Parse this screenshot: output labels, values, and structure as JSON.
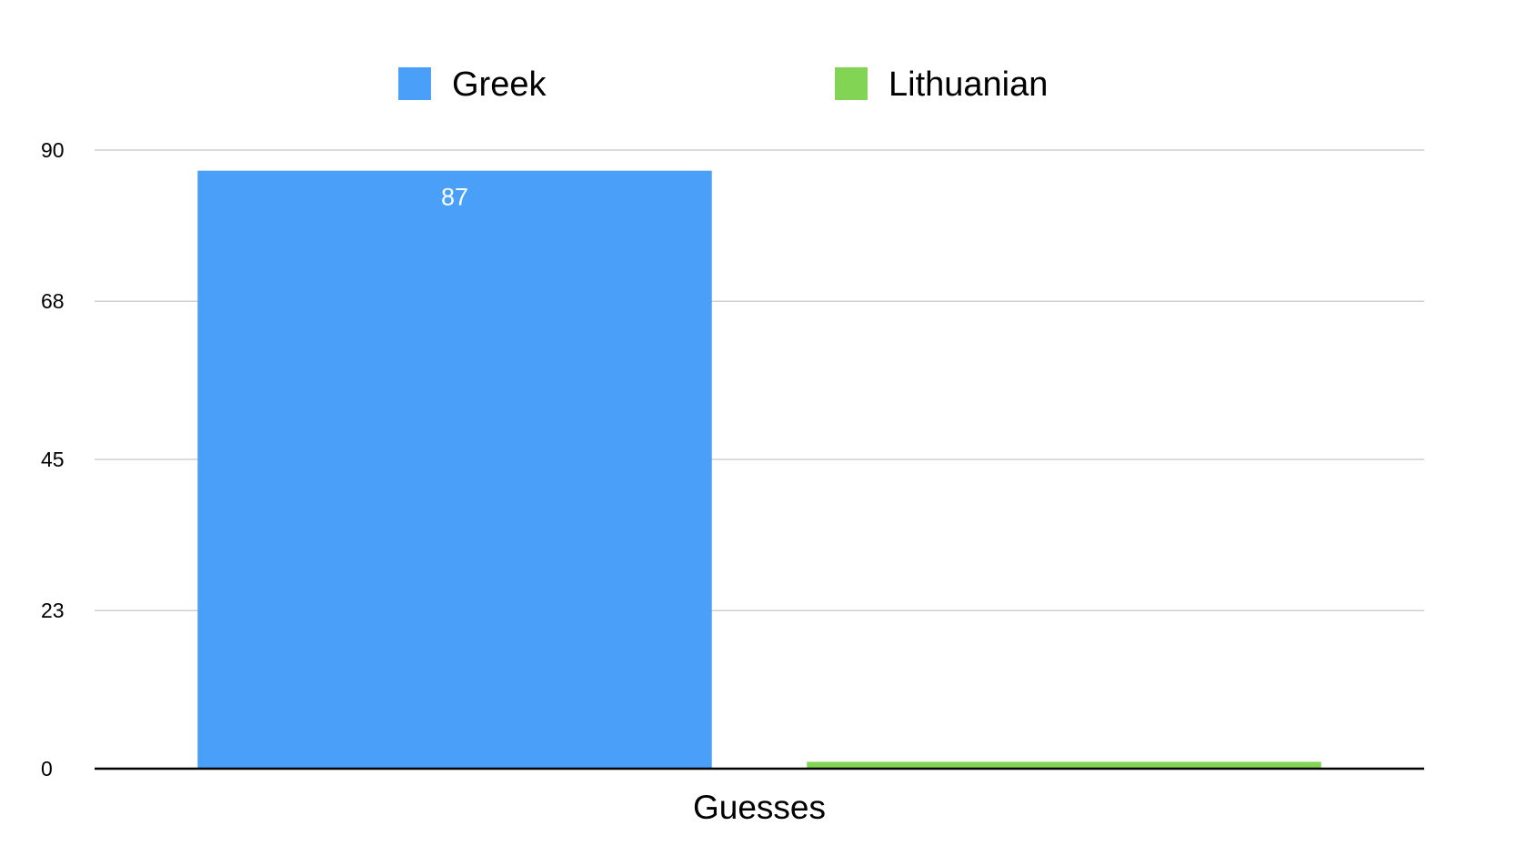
{
  "chart_data": {
    "type": "bar",
    "title": "",
    "xlabel": "",
    "ylabel": "",
    "categories": [
      "Guesses"
    ],
    "series": [
      {
        "name": "Greek",
        "values": [
          87
        ],
        "color": "#4a9ff8",
        "data_label": "87"
      },
      {
        "name": "Lithuanian",
        "values": [
          1
        ],
        "color": "#82d554",
        "data_label": ""
      }
    ],
    "ylim": [
      0,
      90
    ],
    "yticks": [
      0,
      23,
      45,
      68,
      90
    ],
    "ytick_labels": [
      "0",
      "23",
      "45",
      "68",
      "90"
    ],
    "grid": true,
    "legend": "top-center"
  }
}
